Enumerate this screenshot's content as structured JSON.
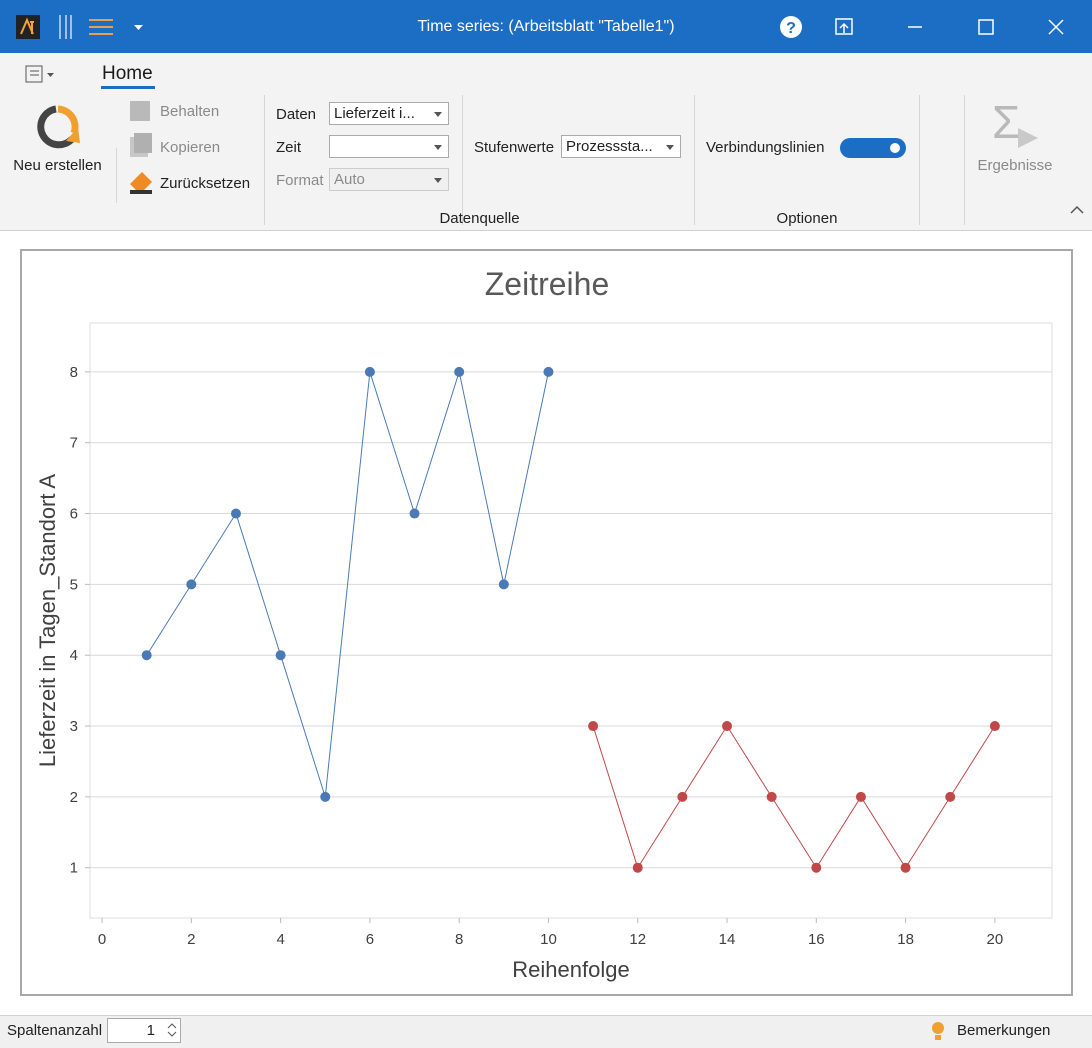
{
  "window": {
    "title": "Time series:  (Arbeitsblatt \"Tabelle1\")"
  },
  "ribbon": {
    "tab": "Home",
    "new": "Neu erstellen",
    "keep": "Behalten",
    "copy": "Kopieren",
    "reset": "Zurücksetzen",
    "data_label": "Daten",
    "data_value": "Lieferzeit i...",
    "time_label": "Zeit",
    "format_label": "Format",
    "format_value": "Auto",
    "group_datasource": "Datenquelle",
    "levels_label": "Stufenwerte",
    "levels_value": "Prozesssta...",
    "lines_label": "Verbindungslinien",
    "group_options": "Optionen",
    "results": "Ergebnisse"
  },
  "status": {
    "columns_label": "Spaltenanzahl",
    "columns_value": "1",
    "remarks": "Bemerkungen"
  },
  "chart_data": {
    "type": "line",
    "title": "Zeitreihe",
    "x_label": "Reihenfolge",
    "y_label": "Lieferzeit in Tagen_Standort A",
    "series": [
      {
        "color": "#4a7ab5",
        "x": [
          1,
          2,
          3,
          4,
          5,
          6,
          7,
          8,
          9,
          10
        ],
        "values": [
          4,
          5,
          6,
          4,
          2,
          8,
          6,
          8,
          5,
          8
        ]
      },
      {
        "color": "#c04848",
        "x": [
          11,
          12,
          13,
          14,
          15,
          16,
          17,
          18,
          19,
          20
        ],
        "values": [
          3,
          1,
          2,
          3,
          2,
          1,
          2,
          1,
          2,
          3
        ]
      }
    ],
    "xlim": [
      -0.27,
      21.28
    ],
    "xticks": [
      0,
      2,
      4,
      6,
      8,
      10,
      12,
      14,
      16,
      18,
      20
    ],
    "ylim": [
      0.29,
      8.69
    ],
    "yticks": [
      1,
      2,
      3,
      4,
      5,
      6,
      7,
      8
    ],
    "grid": true
  }
}
